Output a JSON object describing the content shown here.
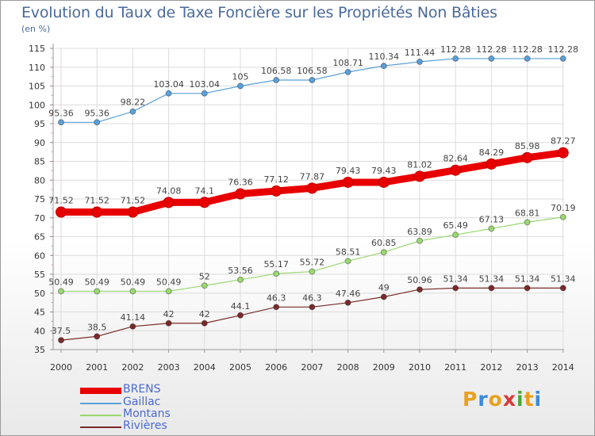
{
  "header": {
    "title": "Evolution du Taux de Taxe Foncière sur les Propriétés Non Bâties",
    "unit": "(en %)"
  },
  "brand": {
    "letters": [
      "P",
      "r",
      "o",
      "x",
      "i",
      "t",
      "i"
    ],
    "colors": [
      "#e8a020",
      "#3a8ad8",
      "#e8a020",
      "#d83a3a",
      "#4aa83a",
      "#e8a020",
      "#3a8ad8"
    ]
  },
  "chart_data": {
    "type": "line",
    "x": [
      2000,
      2001,
      2002,
      2003,
      2004,
      2005,
      2006,
      2007,
      2008,
      2009,
      2010,
      2011,
      2012,
      2013,
      2014
    ],
    "ylim": [
      35,
      115
    ],
    "yticks": [
      35,
      40,
      45,
      50,
      55,
      60,
      65,
      70,
      75,
      80,
      85,
      90,
      95,
      100,
      105,
      110,
      115
    ],
    "grid": true,
    "legend_position": "bottom-left",
    "series": [
      {
        "name": "BRENS",
        "color": "#e80000",
        "values": [
          71.52,
          71.52,
          71.52,
          74.08,
          74.1,
          76.36,
          77.12,
          77.87,
          79.43,
          79.43,
          81.02,
          82.64,
          84.29,
          85.98,
          87.27
        ],
        "labels": [
          "71.52",
          "71.52",
          "71.52",
          "74.08",
          "74.1",
          "76.36",
          "77.12",
          "77.87",
          "79.43",
          "79.43",
          "81.02",
          "82.64",
          "84.29",
          "85.98",
          "87.27"
        ]
      },
      {
        "name": "Gaillac",
        "color": "#5ba0d8",
        "values": [
          95.36,
          95.36,
          98.22,
          103.04,
          103.04,
          105,
          106.58,
          106.58,
          108.71,
          110.34,
          111.44,
          112.28,
          112.28,
          112.28,
          112.28
        ],
        "labels": [
          "95.36",
          "95.36",
          "98.22",
          "103.04",
          "103.04",
          "105",
          "106.58",
          "106.58",
          "108.71",
          "110.34",
          "111.44",
          "112.28",
          "112.28",
          "112.28",
          "112.28"
        ]
      },
      {
        "name": "Montans",
        "color": "#9ad870",
        "values": [
          50.49,
          50.49,
          50.49,
          50.49,
          52,
          53.56,
          55.17,
          55.72,
          58.51,
          60.85,
          63.89,
          65.49,
          67.13,
          68.81,
          70.19
        ],
        "labels": [
          "50.49",
          "50.49",
          "50.49",
          "50.49",
          "52",
          "53.56",
          "55.17",
          "55.72",
          "58.51",
          "60.85",
          "63.89",
          "65.49",
          "67.13",
          "68.81",
          "70.19"
        ]
      },
      {
        "name": "Rivières",
        "color": "#7a2a2a",
        "values": [
          37.5,
          38.5,
          41.14,
          42,
          42,
          44.1,
          46.3,
          46.3,
          47.46,
          49,
          50.96,
          51.34,
          51.34,
          51.34,
          51.34
        ],
        "labels": [
          "37.5",
          "38.5",
          "41.14",
          "42",
          "42",
          "44.1",
          "46.3",
          "46.3",
          "47.46",
          "49",
          "50.96",
          "51.34",
          "51.34",
          "51.34",
          "51.34"
        ]
      }
    ]
  }
}
